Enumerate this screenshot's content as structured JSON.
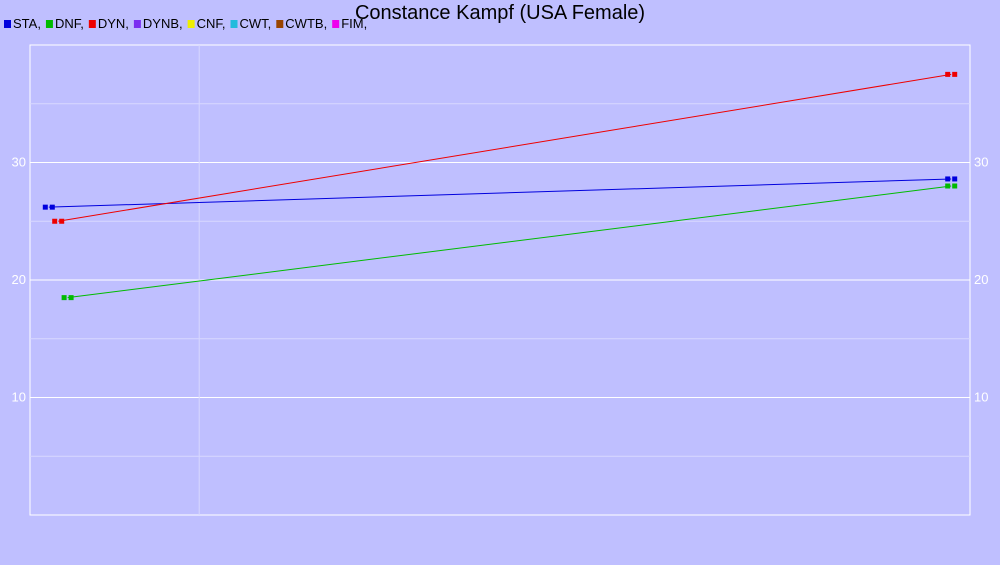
{
  "chart_data": {
    "type": "line",
    "title": "Constance Kampf (USA Female)",
    "xlabel": "",
    "ylabel": "",
    "ylim": [
      0,
      40
    ],
    "yticks": [
      10,
      20,
      30
    ],
    "grid": true,
    "legend_position": "top-left",
    "legend": [
      {
        "name": "STA,",
        "color": "#0000dd"
      },
      {
        "name": "DNF,",
        "color": "#00bb00"
      },
      {
        "name": "DYN,",
        "color": "#ee0000"
      },
      {
        "name": "DYNB,",
        "color": "#7a2ff0"
      },
      {
        "name": "CNF,",
        "color": "#eeee00"
      },
      {
        "name": "CWT,",
        "color": "#22bbdd"
      },
      {
        "name": "CWTB,",
        "color": "#994400"
      },
      {
        "name": "FIM,",
        "color": "#ee00ee"
      }
    ],
    "series": [
      {
        "name": "STA",
        "color": "#0000dd",
        "points": [
          [
            0.02,
            26.2
          ],
          [
            0.98,
            28.6
          ]
        ]
      },
      {
        "name": "DNF",
        "color": "#00bb00",
        "points": [
          [
            0.04,
            18.5
          ],
          [
            0.98,
            28.0
          ]
        ]
      },
      {
        "name": "DYN",
        "color": "#ee0000",
        "points": [
          [
            0.03,
            25.0
          ],
          [
            0.98,
            37.5
          ]
        ]
      }
    ]
  }
}
